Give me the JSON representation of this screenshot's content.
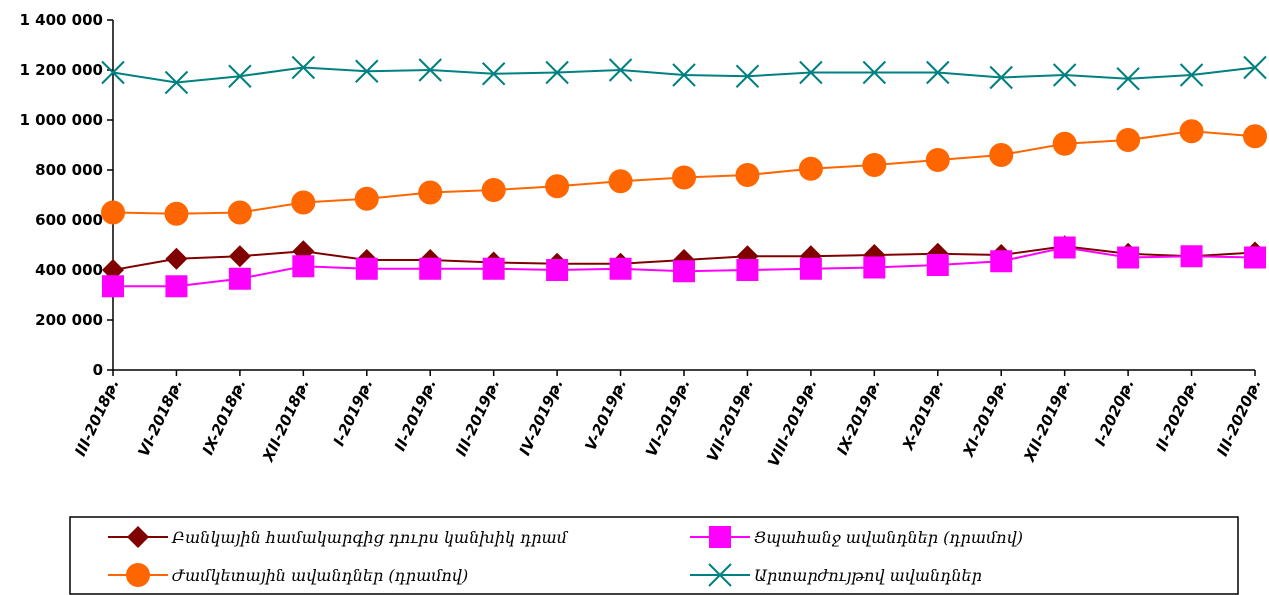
{
  "chart_data": {
    "type": "line",
    "title": "",
    "xlabel": "",
    "ylabel": "",
    "ylim": [
      0,
      1400000
    ],
    "yticks": [
      0,
      200000,
      400000,
      600000,
      800000,
      1000000,
      1200000,
      1400000
    ],
    "ytick_labels": [
      "0",
      "200 000",
      "400 000",
      "600 000",
      "800 000",
      "1 000 000",
      "1 200 000",
      "1 400 000"
    ],
    "grid": false,
    "legend_position": "bottom",
    "categories": [
      "III-2018թ.",
      "VI-2018թ.",
      "IX-2018թ.",
      "XII-2018թ.",
      "I-2019թ.",
      "II-2019թ.",
      "III-2019թ.",
      "IV-2019թ.",
      "V-2019թ.",
      "VI-2019թ.",
      "VII-2019թ.",
      "VIII-2019թ.",
      "IX-2019թ.",
      "X-2019թ.",
      "XI-2019թ.",
      "XII-2019թ.",
      "I-2020թ.",
      "II-2020թ.",
      "III-2020թ."
    ],
    "series": [
      {
        "name": "Բանկային համակարգից դուրս կանխիկ դրամ",
        "color": "#800000",
        "marker": "diamond",
        "values": [
          400000,
          445000,
          455000,
          475000,
          440000,
          440000,
          430000,
          425000,
          425000,
          440000,
          455000,
          455000,
          460000,
          465000,
          460000,
          495000,
          465000,
          455000,
          470000
        ]
      },
      {
        "name": "Ցպահանջ ավանդներ (դրամով)",
        "color": "#ff00ff",
        "marker": "square",
        "values": [
          335000,
          335000,
          365000,
          415000,
          405000,
          405000,
          405000,
          400000,
          405000,
          395000,
          400000,
          405000,
          410000,
          420000,
          435000,
          490000,
          450000,
          455000,
          450000
        ]
      },
      {
        "name": "Ժամկետային ավանդներ (դրամով)",
        "color": "#ff6600",
        "marker": "circle",
        "values": [
          630000,
          625000,
          630000,
          670000,
          685000,
          710000,
          720000,
          735000,
          755000,
          770000,
          780000,
          805000,
          820000,
          840000,
          860000,
          905000,
          920000,
          955000,
          935000
        ]
      },
      {
        "name": "Արտարժույթով ավանդներ",
        "color": "#008080",
        "marker": "x",
        "values": [
          1190000,
          1150000,
          1175000,
          1210000,
          1195000,
          1200000,
          1185000,
          1190000,
          1200000,
          1180000,
          1175000,
          1190000,
          1190000,
          1190000,
          1170000,
          1180000,
          1165000,
          1180000,
          1210000
        ]
      }
    ]
  }
}
